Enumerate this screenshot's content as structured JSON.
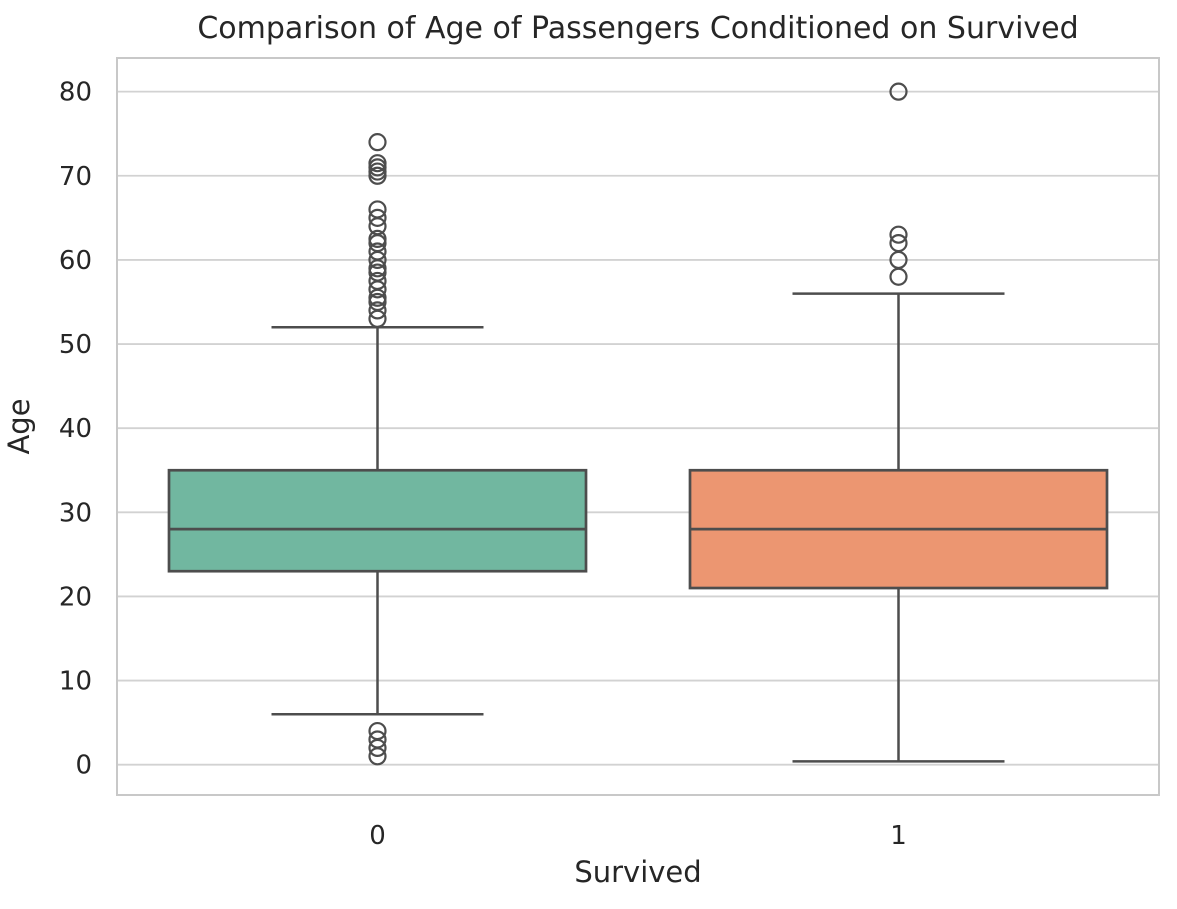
{
  "figure": {
    "background": "#ffffff"
  },
  "chart_data": {
    "type": "boxplot",
    "title": "Comparison of Age of Passengers Conditioned on Survived",
    "xlabel": "Survived",
    "ylabel": "Age",
    "categories": [
      "0",
      "1"
    ],
    "yticks": [
      0,
      10,
      20,
      30,
      40,
      50,
      60,
      70,
      80
    ],
    "ylim": [
      -3.6,
      84.0
    ],
    "grid": "horizontal-only",
    "legend": "none",
    "series": [
      {
        "category": "0",
        "box_fill": "#71b7a0",
        "whisker_low": 6,
        "q1": 23,
        "median": 28,
        "q3": 35,
        "whisker_high": 52,
        "outliers_high": [
          74,
          71.5,
          71,
          70.5,
          70,
          66,
          65,
          64,
          62.5,
          62,
          61,
          60,
          59,
          58.5,
          57.5,
          56.5,
          55.5,
          55,
          54,
          53
        ],
        "outliers_low": [
          4,
          3,
          2,
          1
        ]
      },
      {
        "category": "1",
        "box_fill": "#ec9671",
        "whisker_low": 0.4,
        "q1": 21,
        "median": 28,
        "q3": 35,
        "whisker_high": 56,
        "outliers_high": [
          80,
          63,
          62,
          60,
          58
        ],
        "outliers_low": []
      }
    ],
    "colors": {
      "line": "#4d4d4d",
      "grid": "#d2d2d2",
      "spine": "#c8c8c8",
      "text": "#262626",
      "background": "#ffffff"
    }
  }
}
